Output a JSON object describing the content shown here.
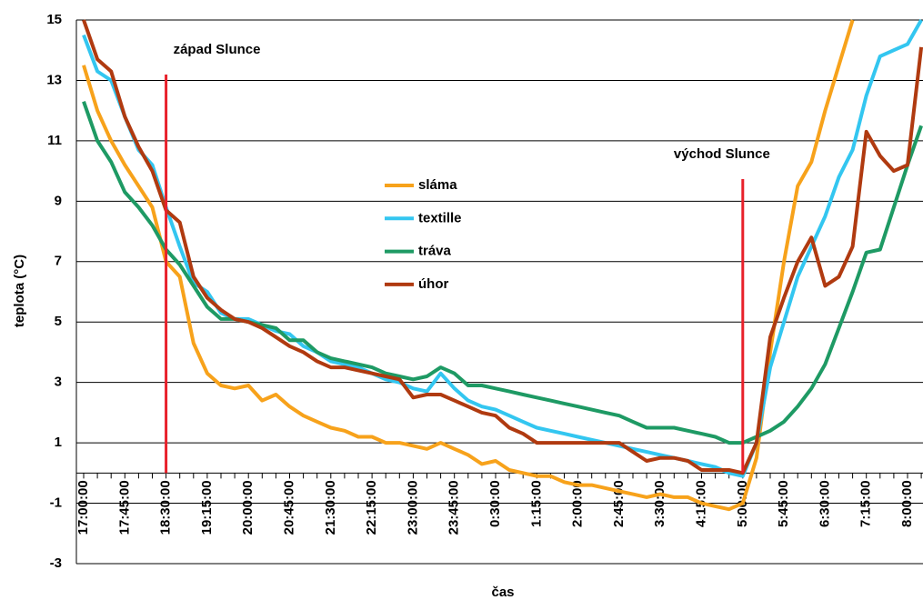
{
  "chart_data": {
    "type": "line",
    "x_label": "čas",
    "y_label": "teplota (°C)",
    "ylim": [
      -3,
      15
    ],
    "yticks": [
      -3,
      -1,
      1,
      3,
      5,
      7,
      9,
      11,
      13,
      15
    ],
    "grid": true,
    "legend": "center",
    "categories": [
      "17:00:00",
      null,
      null,
      "17:45:00",
      null,
      null,
      "18:30:00",
      null,
      null,
      "19:15:00",
      null,
      null,
      "20:00:00",
      null,
      null,
      "20:45:00",
      null,
      null,
      "21:30:00",
      null,
      null,
      "22:15:00",
      null,
      null,
      "23:00:00",
      null,
      null,
      "23:45:00",
      null,
      null,
      "0:30:00",
      null,
      null,
      "1:15:00",
      null,
      null,
      "2:00:00",
      null,
      null,
      "2:45:00",
      null,
      null,
      "3:30:00",
      null,
      null,
      "4:15:00",
      null,
      null,
      "5:00:00",
      null,
      null,
      "5:45:00",
      null,
      null,
      "6:30:00",
      null,
      null,
      "7:15:00",
      null,
      null,
      "8:00:00",
      null
    ],
    "annotations": [
      {
        "text": "západ Slunce",
        "x": "18:30:00",
        "color": "#e8202a"
      },
      {
        "text": "východ Slunce",
        "x": "5:00:00",
        "color": "#e8202a"
      }
    ],
    "series": [
      {
        "name": "sláma",
        "color": "#f7a21b",
        "values": [
          13.5,
          12,
          11,
          10.2,
          9.5,
          8.8,
          7,
          6.5,
          4.3,
          3.3,
          2.9,
          2.8,
          2.9,
          2.4,
          2.6,
          2.2,
          1.9,
          1.7,
          1.5,
          1.4,
          1.2,
          1.2,
          1.0,
          1.0,
          0.9,
          0.8,
          1.0,
          0.8,
          0.6,
          0.3,
          0.4,
          0.1,
          0.0,
          -0.1,
          -0.1,
          -0.3,
          -0.4,
          -0.4,
          -0.5,
          -0.6,
          -0.7,
          -0.8,
          -0.7,
          -0.8,
          -0.8,
          -1.0,
          -1.1,
          -1.2,
          -1.0,
          0.5,
          4,
          7,
          9.5,
          10.3,
          12,
          13.5,
          15,
          null,
          null,
          null,
          null,
          null
        ]
      },
      {
        "name": "textille",
        "color": "#33c6f0",
        "values": [
          14.5,
          13.3,
          13.0,
          11.8,
          10.7,
          10.2,
          8.8,
          7.5,
          6.3,
          6.0,
          5.3,
          5.1,
          5.1,
          4.9,
          4.7,
          4.6,
          4.2,
          4.0,
          3.7,
          3.6,
          3.5,
          3.3,
          3.1,
          3.0,
          2.8,
          2.7,
          3.3,
          2.8,
          2.4,
          2.2,
          2.1,
          1.9,
          1.7,
          1.5,
          1.4,
          1.3,
          1.2,
          1.1,
          1.0,
          0.9,
          0.8,
          0.7,
          0.6,
          0.5,
          0.4,
          0.3,
          0.2,
          0.0,
          -0.1,
          1.0,
          3.5,
          5.0,
          6.5,
          7.5,
          8.5,
          9.8,
          10.7,
          12.5,
          13.8,
          14.0,
          14.2,
          15
        ]
      },
      {
        "name": "tráva",
        "color": "#1e9a64",
        "values": [
          12.3,
          11.0,
          10.3,
          9.3,
          8.8,
          8.2,
          7.4,
          6.9,
          6.2,
          5.5,
          5.1,
          5.1,
          5.0,
          4.9,
          4.8,
          4.4,
          4.4,
          4.0,
          3.8,
          3.7,
          3.6,
          3.5,
          3.3,
          3.2,
          3.1,
          3.2,
          3.5,
          3.3,
          2.9,
          2.9,
          2.8,
          2.7,
          2.6,
          2.5,
          2.4,
          2.3,
          2.2,
          2.1,
          2.0,
          1.9,
          1.7,
          1.5,
          1.5,
          1.5,
          1.4,
          1.3,
          1.2,
          1.0,
          1.0,
          1.2,
          1.4,
          1.7,
          2.2,
          2.8,
          3.6,
          4.8,
          6.0,
          7.3,
          7.4,
          8.8,
          10.2,
          11.5
        ]
      },
      {
        "name": "úhor",
        "color": "#b03a10",
        "values": [
          15,
          13.7,
          13.3,
          11.8,
          10.8,
          10.0,
          8.7,
          8.3,
          6.5,
          5.8,
          5.4,
          5.1,
          5.0,
          4.8,
          4.5,
          4.2,
          4.0,
          3.7,
          3.5,
          3.5,
          3.4,
          3.3,
          3.2,
          3.1,
          2.5,
          2.6,
          2.6,
          2.4,
          2.2,
          2.0,
          1.9,
          1.5,
          1.3,
          1.0,
          1.0,
          1.0,
          1.0,
          1.0,
          1.0,
          1.0,
          0.7,
          0.4,
          0.5,
          0.5,
          0.4,
          0.1,
          0.1,
          0.1,
          0.0,
          1.0,
          4.5,
          5.8,
          7.0,
          7.8,
          6.2,
          6.5,
          7.5,
          11.3,
          10.5,
          10.0,
          10.2,
          14.1
        ]
      }
    ]
  }
}
